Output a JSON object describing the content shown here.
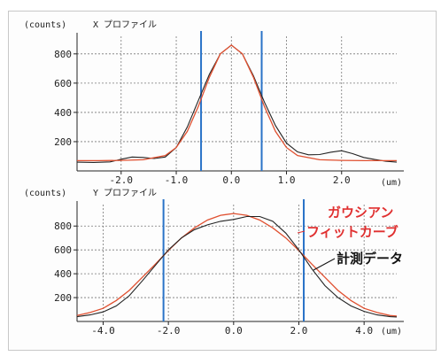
{
  "chart_data": [
    {
      "type": "line",
      "panel_label": "(counts)",
      "title": "X プロファイル",
      "xlabel": "(um)",
      "xlim": [
        -2.8,
        3.0
      ],
      "ylim": [
        0,
        920
      ],
      "x_ticks": [
        "-2.0",
        "-1.0",
        "0.0",
        "1.0",
        "2.0"
      ],
      "x_tick_values": [
        -2,
        -1,
        0,
        1,
        2
      ],
      "y_ticks": [
        "200",
        "400",
        "600",
        "800"
      ],
      "y_tick_values": [
        200,
        400,
        600,
        800
      ],
      "grid": true,
      "markers_x": [
        -0.55,
        0.55
      ],
      "series": [
        {
          "color": "#222222",
          "x": [
            -2.8,
            -2.5,
            -2.2,
            -2.0,
            -1.8,
            -1.6,
            -1.4,
            -1.2,
            -1.0,
            -0.8,
            -0.6,
            -0.4,
            -0.2,
            0.0,
            0.2,
            0.4,
            0.6,
            0.8,
            1.0,
            1.2,
            1.4,
            1.6,
            1.8,
            2.0,
            2.2,
            2.4,
            2.6,
            2.8,
            3.0
          ],
          "y": [
            60,
            58,
            62,
            80,
            95,
            92,
            85,
            95,
            160,
            300,
            480,
            660,
            800,
            860,
            800,
            650,
            470,
            310,
            190,
            130,
            110,
            112,
            128,
            138,
            118,
            92,
            78,
            66,
            60
          ]
        },
        {
          "color": "#e05030",
          "x": [
            -2.8,
            -2.4,
            -2.0,
            -1.6,
            -1.2,
            -1.0,
            -0.8,
            -0.6,
            -0.4,
            -0.2,
            0.0,
            0.2,
            0.4,
            0.6,
            0.8,
            1.0,
            1.2,
            1.6,
            2.0,
            2.4,
            2.8,
            3.0
          ],
          "y": [
            70,
            70,
            72,
            76,
            105,
            160,
            270,
            440,
            640,
            800,
            860,
            800,
            640,
            440,
            270,
            160,
            105,
            76,
            72,
            70,
            70,
            70
          ]
        }
      ]
    },
    {
      "type": "line",
      "panel_label": "(counts)",
      "title": "Y プロファイル",
      "xlabel": "(um)",
      "xlim": [
        -4.8,
        5.0
      ],
      "ylim": [
        0,
        980
      ],
      "x_ticks": [
        "-4.0",
        "-2.0",
        "0.0",
        "2.0",
        "4.0"
      ],
      "x_tick_values": [
        -4,
        -2,
        0,
        2,
        4
      ],
      "y_ticks": [
        "200",
        "400",
        "600",
        "800"
      ],
      "y_tick_values": [
        200,
        400,
        600,
        800
      ],
      "grid": true,
      "markers_x": [
        -2.15,
        2.15
      ],
      "series": [
        {
          "name": "ガウシアン\nフィットカーブ",
          "color": "#e05030",
          "x": [
            -4.8,
            -4.4,
            -4.0,
            -3.6,
            -3.2,
            -2.8,
            -2.4,
            -2.0,
            -1.6,
            -1.2,
            -0.8,
            -0.4,
            0.0,
            0.4,
            0.8,
            1.2,
            1.6,
            2.0,
            2.4,
            2.8,
            3.2,
            3.6,
            4.0,
            4.4,
            4.8,
            5.0
          ],
          "y": [
            50,
            75,
            110,
            175,
            260,
            370,
            480,
            595,
            700,
            785,
            850,
            890,
            905,
            890,
            850,
            785,
            700,
            595,
            480,
            370,
            260,
            175,
            110,
            75,
            50,
            45
          ]
        },
        {
          "name": "計測データ",
          "color": "#222222",
          "x": [
            -4.8,
            -4.4,
            -4.0,
            -3.6,
            -3.2,
            -2.8,
            -2.4,
            -2.0,
            -1.6,
            -1.2,
            -0.8,
            -0.4,
            0.0,
            0.4,
            0.8,
            1.2,
            1.6,
            2.0,
            2.4,
            2.8,
            3.2,
            3.6,
            4.0,
            4.4,
            4.8,
            5.0
          ],
          "y": [
            40,
            55,
            80,
            130,
            215,
            340,
            470,
            600,
            700,
            770,
            810,
            840,
            855,
            880,
            880,
            840,
            740,
            600,
            440,
            300,
            200,
            130,
            85,
            55,
            40,
            38
          ]
        }
      ]
    }
  ],
  "annotations": {
    "gaussian_fit": [
      "ガウシアン",
      "フィットカーブ"
    ],
    "measured": "計測データ",
    "gaussian_color": "#e03030",
    "measured_color": "#111111"
  },
  "colors": {
    "marker_line": "#2a73c8",
    "grid": "#777777",
    "axis": "#222222"
  }
}
